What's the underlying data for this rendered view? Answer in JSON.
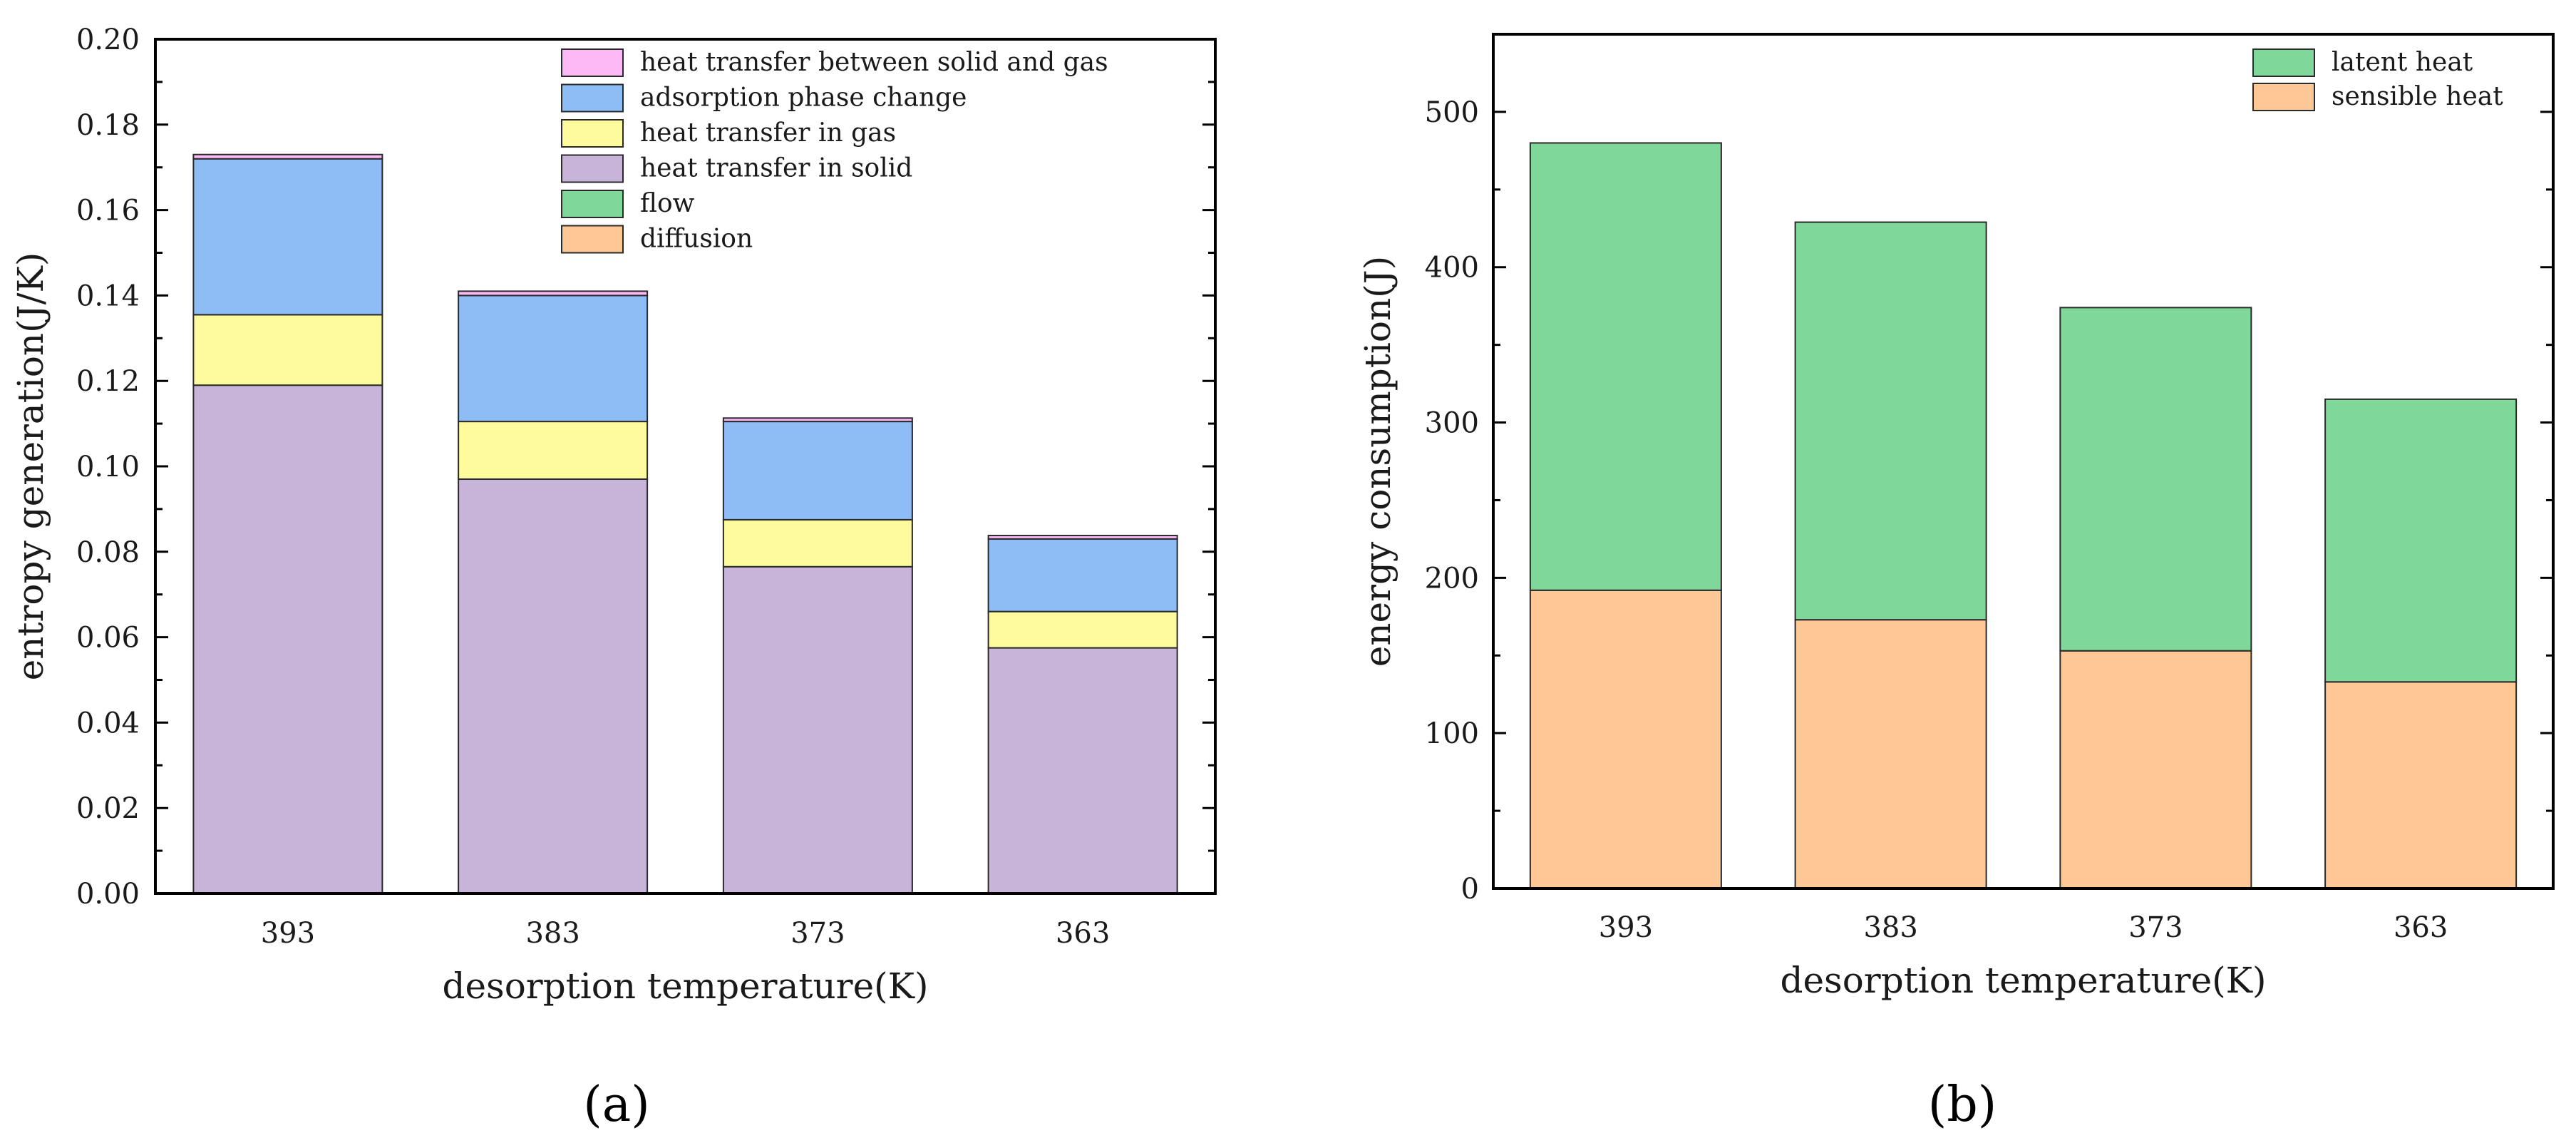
{
  "figure": {
    "panel_a_label": "(a)",
    "panel_b_label": "(b)"
  },
  "chart_data": [
    {
      "id": "a",
      "type": "bar",
      "stacked": true,
      "title": "",
      "xlabel": "desorption temperature(K)",
      "ylabel": "entropy generation(J/K)",
      "categories": [
        "393",
        "383",
        "373",
        "363"
      ],
      "ylim": [
        0,
        0.2
      ],
      "yticks": [
        0.0,
        0.02,
        0.04,
        0.06,
        0.08,
        0.1,
        0.12,
        0.14,
        0.16,
        0.18,
        0.2
      ],
      "ytick_labels": [
        "0.00",
        "0.02",
        "0.04",
        "0.06",
        "0.08",
        "0.10",
        "0.12",
        "0.14",
        "0.16",
        "0.18",
        "0.20"
      ],
      "legend_position": "top-right",
      "legend_order": [
        "heat transfer between solid and gas",
        "adsorption phase change",
        "heat transfer in gas",
        "heat transfer in solid",
        "flow",
        "diffusion"
      ],
      "series": [
        {
          "name": "diffusion",
          "color": "#fdc896",
          "values": [
            0.0,
            0.0,
            0.0,
            0.0
          ]
        },
        {
          "name": "flow",
          "color": "#7fd89a",
          "values": [
            0.0,
            0.0,
            0.0,
            0.0
          ]
        },
        {
          "name": "heat transfer in solid",
          "color": "#c8b4d8",
          "values": [
            0.119,
            0.097,
            0.0765,
            0.0575
          ]
        },
        {
          "name": "heat transfer in gas",
          "color": "#fdfb9e",
          "values": [
            0.0165,
            0.0135,
            0.011,
            0.0085
          ]
        },
        {
          "name": "adsorption phase change",
          "color": "#8ebcf5",
          "values": [
            0.0365,
            0.0295,
            0.023,
            0.017
          ]
        },
        {
          "name": "heat transfer between solid and gas",
          "color": "#fdb8f6",
          "values": [
            0.001,
            0.001,
            0.0008,
            0.0008
          ]
        }
      ]
    },
    {
      "id": "b",
      "type": "bar",
      "stacked": true,
      "title": "",
      "xlabel": "desorption temperature(K)",
      "ylabel": "energy consumption(J)",
      "categories": [
        "393",
        "383",
        "373",
        "363"
      ],
      "ylim": [
        0,
        550
      ],
      "yticks": [
        0,
        100,
        200,
        300,
        400,
        500
      ],
      "ytick_labels": [
        "0",
        "100",
        "200",
        "300",
        "400",
        "500"
      ],
      "legend_position": "top-right",
      "legend_order": [
        "latent heat",
        "sensible heat"
      ],
      "series": [
        {
          "name": "sensible heat",
          "color": "#fdc896",
          "values": [
            192,
            173,
            153,
            133
          ]
        },
        {
          "name": "latent heat",
          "color": "#7fd89a",
          "values": [
            288,
            256,
            221,
            182
          ]
        }
      ]
    }
  ]
}
